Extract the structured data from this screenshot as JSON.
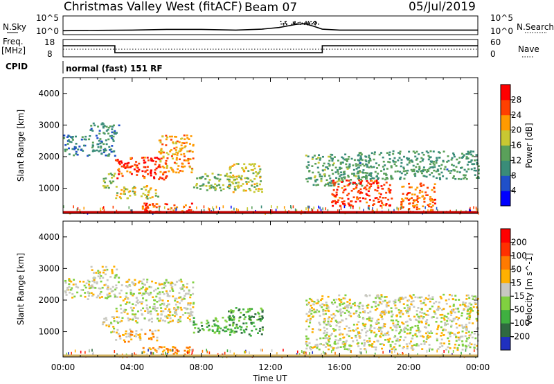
{
  "header": {
    "title": "Christmas Valley West (fitACF)",
    "beam": "Beam 07",
    "date": "05/Jul/2019"
  },
  "top_labels": {
    "nsky": "N.Sky",
    "nsearch": "N.Search",
    "freq": "Freq.",
    "mhz": "[MHz]",
    "nave": "Nave",
    "cpid": "CPID",
    "cpid_text": "normal (fast) 151 RF"
  },
  "chart_data": [
    {
      "type": "line",
      "name": "noise",
      "y_ticks_left": [
        "10^5",
        "10^0"
      ],
      "y_ticks_right": [
        "10^5",
        "10^0"
      ],
      "x": [
        0,
        2,
        4,
        6,
        8,
        10,
        11.5,
        12.5,
        13.5,
        14,
        14.5,
        15,
        16,
        18,
        20,
        22,
        24
      ],
      "values": [
        0.8,
        0.9,
        1.0,
        1.2,
        1.2,
        1.0,
        1.3,
        1.8,
        2.8,
        3.0,
        2.2,
        1.3,
        1.0,
        1.0,
        1.0,
        1.0,
        1.0
      ]
    },
    {
      "type": "line",
      "name": "frequency",
      "y_ticks_left": [
        "18",
        "8"
      ],
      "y_ticks_right": [
        "60",
        "0"
      ],
      "steps": [
        [
          0,
          3,
          15
        ],
        [
          3,
          15,
          10
        ],
        [
          15,
          24,
          15
        ]
      ],
      "nave_level": 0.45
    },
    {
      "type": "heatmap",
      "name": "power",
      "xlabel": "",
      "ylabel": "Slant Range [km]",
      "x_ticks": [
        "00:00",
        "04:00",
        "08:00",
        "12:00",
        "16:00",
        "20:00",
        "00:00"
      ],
      "y_ticks": [
        "1000",
        "2000",
        "3000",
        "4000"
      ],
      "ylim": [
        200,
        4500
      ],
      "colorbar_label": "Power [dB]",
      "colorbar_ticks": [
        "4",
        "8",
        "12",
        "16",
        "20",
        "24",
        "28"
      ],
      "colorbar_colors": [
        "#0000ff",
        "#2050c8",
        "#3a8c78",
        "#5aa05a",
        "#c8c832",
        "#ff9a00",
        "#ff4000",
        "#ff0000"
      ],
      "regions": [
        {
          "t0": 0.0,
          "t1": 3.0,
          "r0": 2050,
          "r1": 2700,
          "level": 0.25
        },
        {
          "t0": 1.5,
          "t1": 3.2,
          "r0": 2700,
          "r1": 3100,
          "level": 0.3
        },
        {
          "t0": 3.0,
          "t1": 6.0,
          "r0": 1300,
          "r1": 2000,
          "level": 0.9
        },
        {
          "t0": 5.5,
          "t1": 7.5,
          "r0": 1500,
          "r1": 2700,
          "level": 0.7
        },
        {
          "t0": 2.2,
          "t1": 3.0,
          "r0": 1000,
          "r1": 1500,
          "level": 0.45
        },
        {
          "t0": 3.0,
          "t1": 5.5,
          "r0": 700,
          "r1": 1100,
          "level": 0.6
        },
        {
          "t0": 7.5,
          "t1": 10.0,
          "r0": 950,
          "r1": 1500,
          "level": 0.45
        },
        {
          "t0": 9.5,
          "t1": 11.5,
          "r0": 900,
          "r1": 1800,
          "level": 0.55
        },
        {
          "t0": 4.5,
          "t1": 7.5,
          "r0": 250,
          "r1": 550,
          "level": 0.85
        },
        {
          "t0": 14.0,
          "t1": 17.5,
          "r0": 1100,
          "r1": 2100,
          "level": 0.4
        },
        {
          "t0": 15.5,
          "t1": 19.0,
          "r0": 450,
          "r1": 1300,
          "level": 0.9
        },
        {
          "t0": 17.0,
          "t1": 24.0,
          "r0": 1300,
          "r1": 2200,
          "level": 0.35
        },
        {
          "t0": 19.5,
          "t1": 21.5,
          "r0": 300,
          "r1": 1200,
          "level": 0.8
        }
      ]
    },
    {
      "type": "heatmap",
      "name": "velocity",
      "xlabel": "Time UT",
      "ylabel": "Slant Range [km]",
      "x_ticks": [
        "00:00",
        "04:00",
        "08:00",
        "12:00",
        "16:00",
        "20:00",
        "00:00"
      ],
      "y_ticks": [
        "1000",
        "2000",
        "3000",
        "4000"
      ],
      "ylim": [
        200,
        4500
      ],
      "colorbar_label": "Velocity [m s^-1]",
      "colorbar_ticks": [
        "200",
        "100",
        "50",
        "15",
        "-15",
        "-50",
        "-100",
        "-200"
      ],
      "colorbar_colors": [
        "#2030c0",
        "#2f6a40",
        "#3fb040",
        "#80d040",
        "#c8c8c0",
        "#ffb000",
        "#ff7a00",
        "#ff3000",
        "#ff0000"
      ],
      "regions": [
        {
          "t0": 0.0,
          "t1": 3.0,
          "r0": 2050,
          "r1": 2700,
          "level": 0.5
        },
        {
          "t0": 1.5,
          "t1": 3.2,
          "r0": 2700,
          "r1": 3100,
          "level": 0.5
        },
        {
          "t0": 3.0,
          "t1": 7.5,
          "r0": 1300,
          "r1": 2700,
          "level": 0.5
        },
        {
          "t0": 2.2,
          "t1": 3.0,
          "r0": 1000,
          "r1": 1500,
          "level": 0.5
        },
        {
          "t0": 3.0,
          "t1": 5.5,
          "r0": 700,
          "r1": 1100,
          "level": 0.62
        },
        {
          "t0": 7.5,
          "t1": 10.0,
          "r0": 950,
          "r1": 1500,
          "level": 0.3
        },
        {
          "t0": 9.5,
          "t1": 11.5,
          "r0": 900,
          "r1": 1800,
          "level": 0.25
        },
        {
          "t0": 4.5,
          "t1": 7.5,
          "r0": 250,
          "r1": 550,
          "level": 0.68
        },
        {
          "t0": 14.0,
          "t1": 24.0,
          "r0": 450,
          "r1": 2200,
          "level": 0.5
        }
      ]
    }
  ]
}
